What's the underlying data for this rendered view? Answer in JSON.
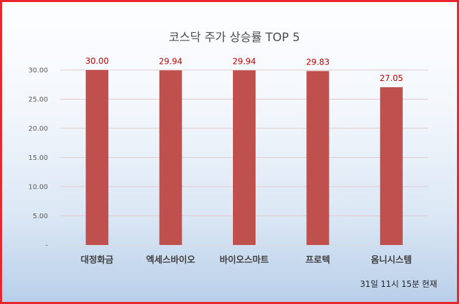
{
  "chart_data": {
    "type": "bar",
    "title": "코스닥 주가 상승률 TOP 5",
    "categories": [
      "대정화금",
      "엑세스바이오",
      "바이오스마트",
      "프로텍",
      "옴니시스템"
    ],
    "values": [
      30.0,
      29.94,
      29.94,
      29.83,
      27.05
    ],
    "value_labels": [
      "30.00",
      "29.94",
      "29.94",
      "29.83",
      "27.05"
    ],
    "ylim": [
      0,
      30
    ],
    "yticks": [
      {
        "value": 0,
        "label": "-"
      },
      {
        "value": 5,
        "label": "5.00"
      },
      {
        "value": 10,
        "label": "10.00"
      },
      {
        "value": 15,
        "label": "15.00"
      },
      {
        "value": 20,
        "label": "20.00"
      },
      {
        "value": 25,
        "label": "25.00"
      },
      {
        "value": 30,
        "label": "30.00"
      }
    ],
    "xlabel": "",
    "ylabel": "",
    "grid": true,
    "legend": "none",
    "colors": {
      "bar": "#c0504d",
      "data_label": "#c00000",
      "grid": "#e3c9c9",
      "frame": "#e8262b"
    }
  },
  "note": "31일 11시  15분 현재"
}
